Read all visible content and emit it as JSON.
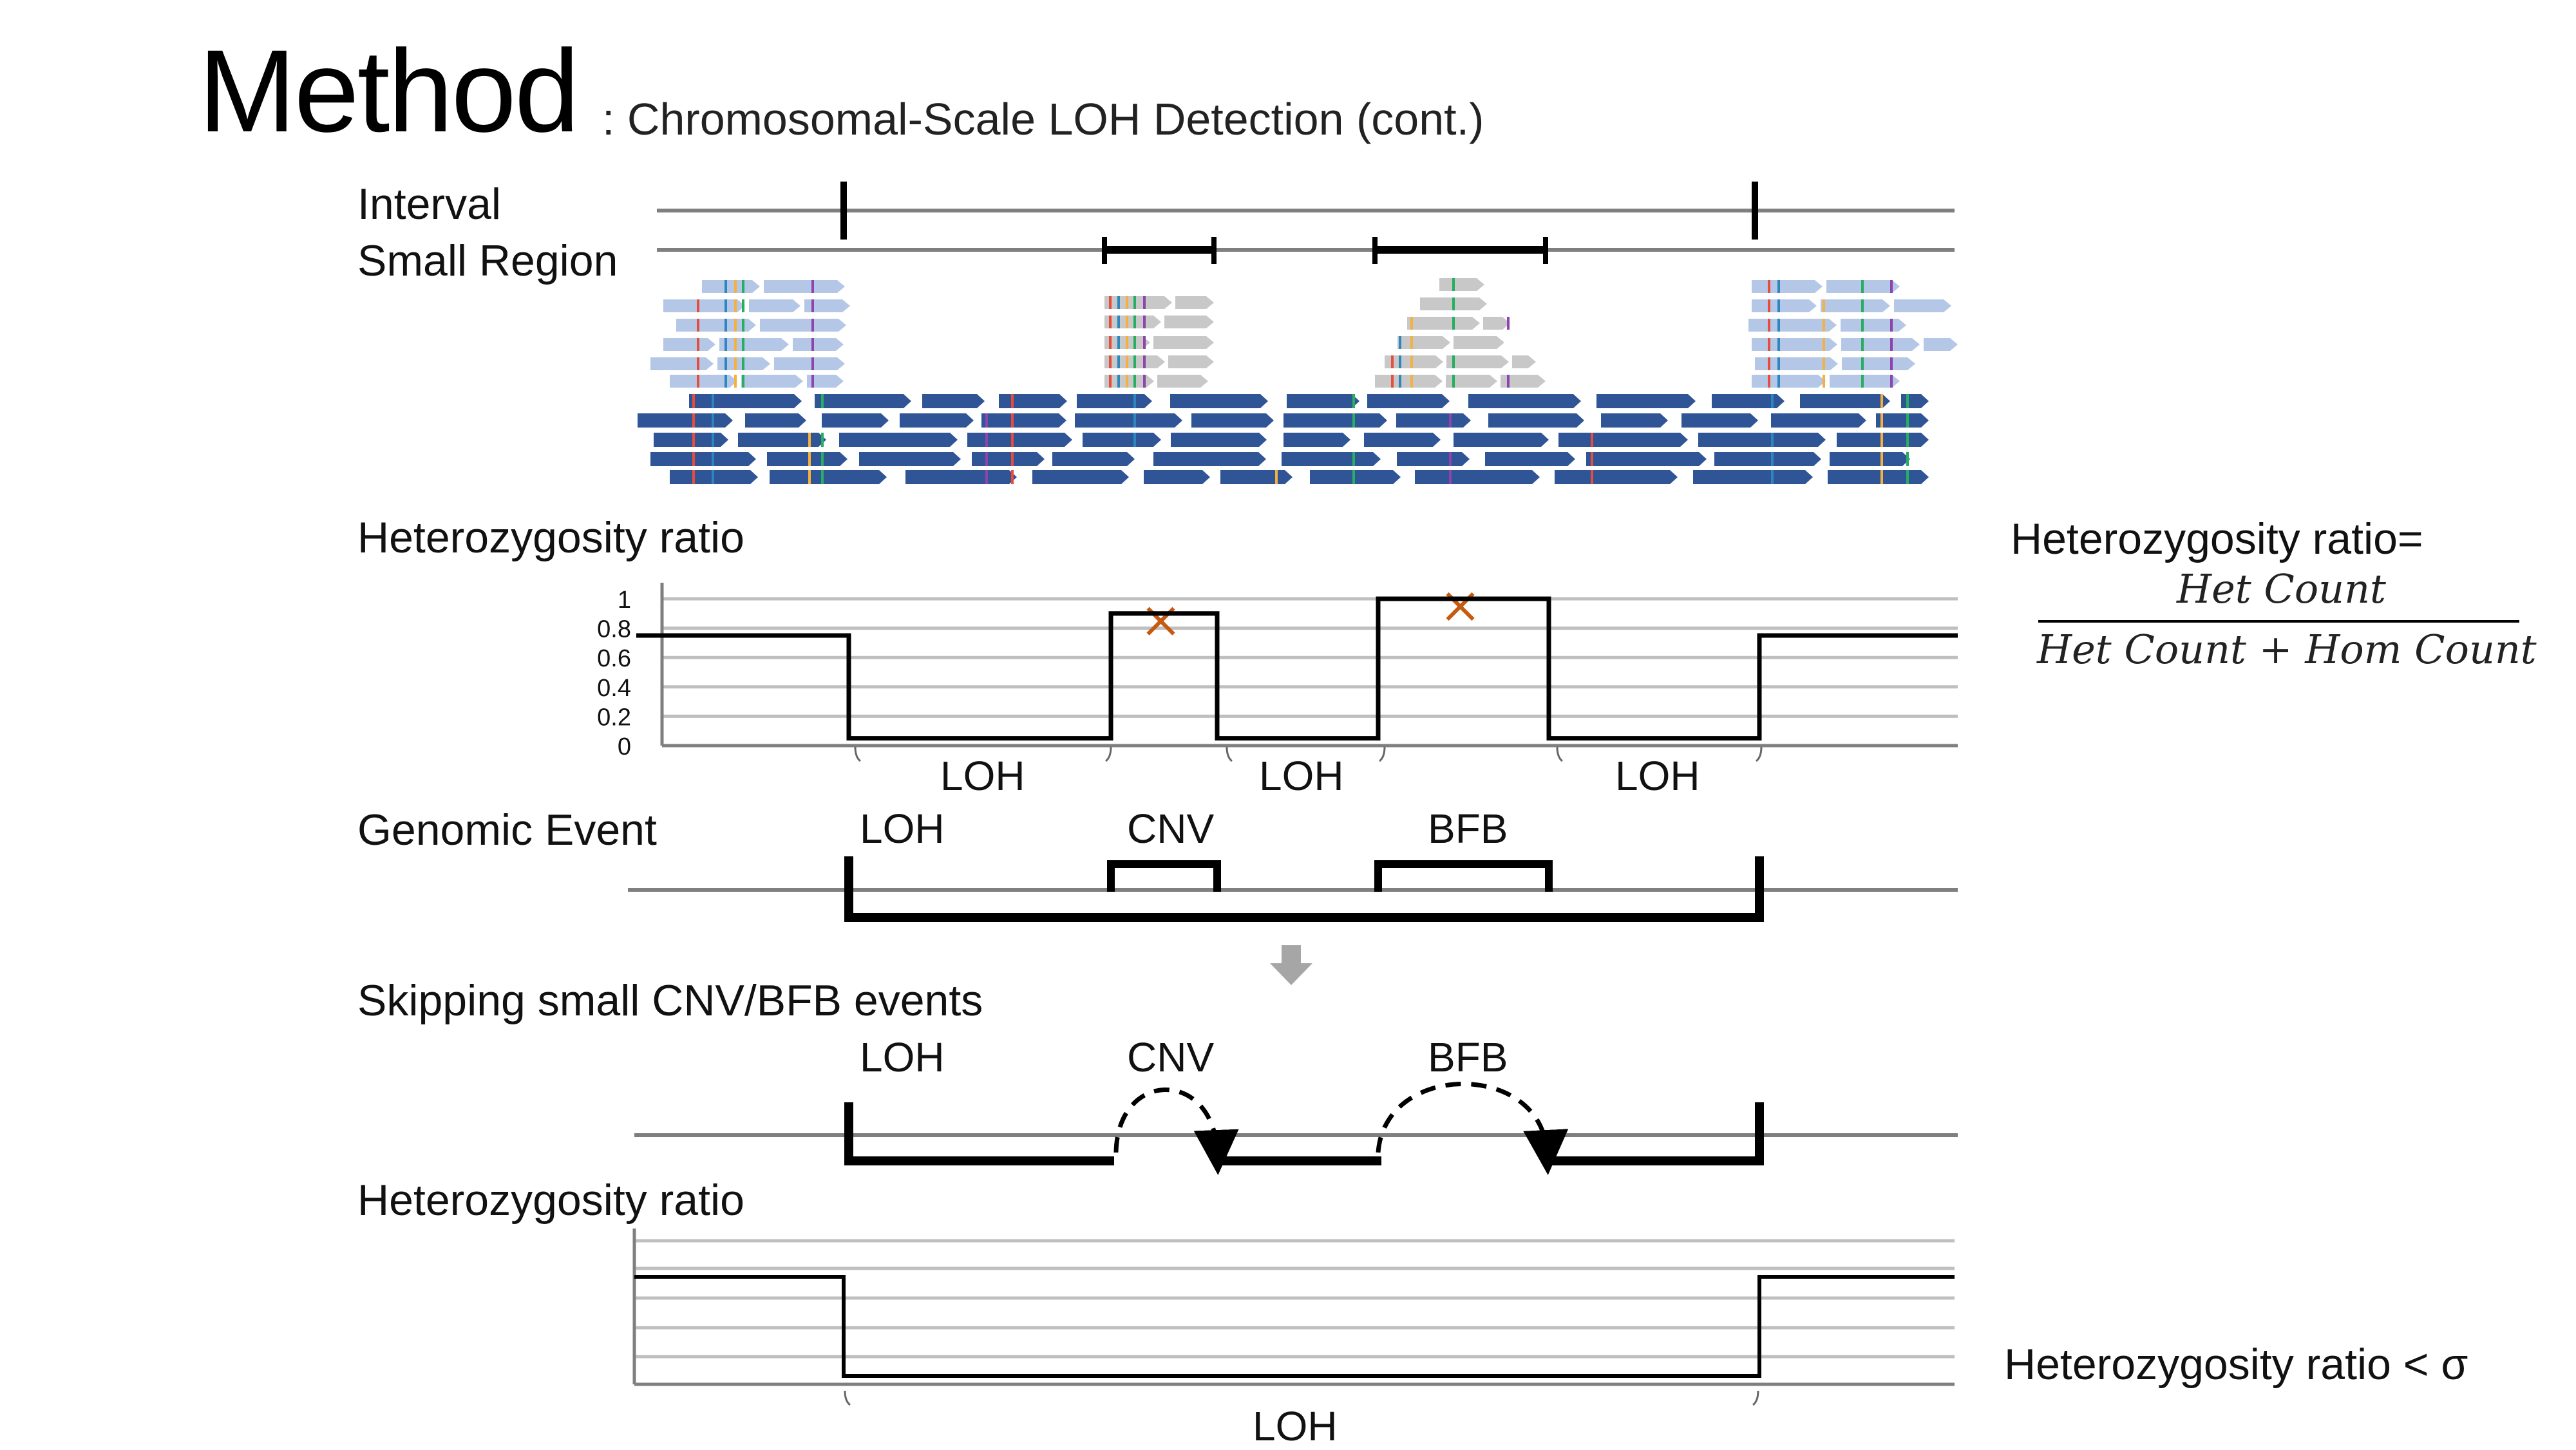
{
  "title": "Method",
  "subtitle": ": Chromosomal-Scale LOH Detection (cont.)",
  "labels": {
    "interval": "Interval",
    "small_region": "Small Region",
    "het_ratio_top": "Heterozygosity ratio",
    "genomic_event": "Genomic Event",
    "skipping": "Skipping small CNV/BFB events",
    "het_ratio_bottom": "Heterozygosity ratio"
  },
  "formula": {
    "lhs": "Heterozygosity ratio=",
    "numerator": "Het Count",
    "denominator": "Het Count + Hom  Count",
    "threshold": "Heterozygosity ratio < σ"
  },
  "events_top": {
    "loh": "LOH",
    "cnv": "CNV",
    "bfb": "BFB"
  },
  "events_skip": {
    "loh": "LOH",
    "cnv": "CNV",
    "bfb": "BFB"
  },
  "loh_brackets_top": [
    "LOH",
    "LOH",
    "LOH"
  ],
  "loh_bracket_bottom": "LOH",
  "colors": {
    "read_light": "#b4c7e7",
    "read_gray": "#c8c8c8",
    "read_dark": "#2f5597",
    "grid": "#bfbfbf",
    "axis": "#7f7f7f",
    "marker": "#c55a11",
    "arrow": "#a6a6a6"
  },
  "chart_data": {
    "type": "line",
    "yticks": [
      "1",
      "0.8",
      "0.6",
      "0.4",
      "0.2",
      "0"
    ],
    "ylim": [
      0,
      1
    ],
    "segments": [
      {
        "y": 0.75
      },
      {
        "y": 0.05
      },
      {
        "y": 0.9,
        "marker": "x"
      },
      {
        "y": 0.05
      },
      {
        "y": 1.0,
        "marker": "x"
      },
      {
        "y": 0.05
      },
      {
        "y": 0.75
      }
    ]
  }
}
